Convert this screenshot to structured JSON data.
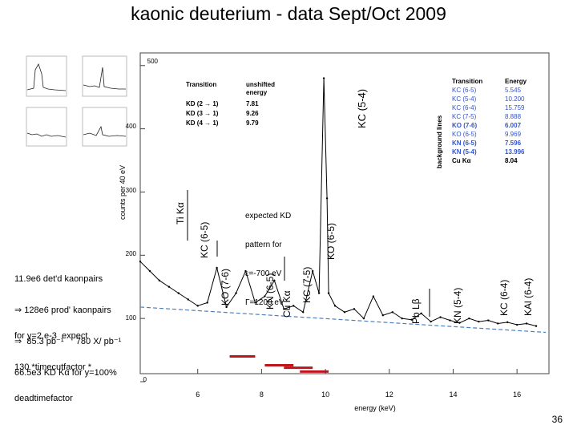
{
  "slide": {
    "title": "kaonic deuterium  - data Sept/Oct 2009",
    "page_number": "36",
    "info_lines": [
      "11.9e6 det'd kaonpairs",
      "⇒ 128e6 prod' kaonpairs",
      "⇒  85.3 pb⁻¹     780 X/ pb⁻¹",
      "66.5e3 KD Kα for y=100%"
    ],
    "yield_lines": [
      "for y=2.e-3  expect",
      "130 *timecutfactor *",
      "deadtimefactor"
    ],
    "expected_lines": [
      "expected KD",
      "pattern for",
      "ε=-700 eV",
      "Γ=1200 eV"
    ]
  },
  "chart_data": {
    "type": "line",
    "xlabel": "energy (keV)",
    "ylabel": "counts per 40 eV",
    "xlim": [
      4.2,
      17
    ],
    "ylim": [
      0,
      520
    ],
    "xticks": [
      "6",
      "8",
      "10",
      "12",
      "14",
      "16"
    ],
    "yticks": [
      "0",
      "100",
      "200",
      "300",
      "400",
      "500"
    ],
    "series": [
      {
        "x": [
          4.2,
          4.5,
          4.8,
          5.1,
          5.4,
          5.7,
          6.0,
          6.3,
          6.6,
          6.9,
          7.2,
          7.5,
          7.8,
          8.1,
          8.4,
          8.7,
          9.0,
          9.3,
          9.6,
          9.8,
          9.95,
          10.05,
          10.1,
          10.3,
          10.6,
          10.9,
          11.2,
          11.5,
          11.8,
          12.1,
          12.4,
          12.7,
          13.0,
          13.3,
          13.6,
          13.9,
          14.2,
          14.5,
          14.8,
          15.1,
          15.4,
          15.7,
          16.0,
          16.3,
          16.6
        ],
        "y": [
          190,
          175,
          160,
          150,
          140,
          130,
          120,
          125,
          180,
          118,
          140,
          175,
          125,
          135,
          160,
          115,
          120,
          110,
          175,
          140,
          480,
          290,
          140,
          120,
          110,
          115,
          100,
          135,
          105,
          110,
          100,
          98,
          108,
          95,
          102,
          97,
          93,
          100,
          95,
          97,
          92,
          94,
          90,
          92,
          88
        ]
      },
      {
        "name": "background",
        "x": [
          4.2,
          16.9
        ],
        "y": [
          118,
          78
        ]
      }
    ],
    "kd_pattern_bars": [
      {
        "x1": 7.0,
        "x2": 7.8,
        "y": 40
      },
      {
        "x1": 8.1,
        "x2": 9.0,
        "y": 26
      },
      {
        "x1": 8.7,
        "x2": 9.6,
        "y": 22
      },
      {
        "x1": 9.2,
        "x2": 10.1,
        "y": 16
      }
    ],
    "peak_labels": [
      "Ti Kα",
      "KC (6-5)",
      "KO (7-6)",
      "KN (6-5)",
      "Cu Kα",
      "KC (7-5)",
      "KO (6-5)",
      "KC (5-4)",
      "Pb Lβ",
      "KN (5-4)",
      "KC (6-4)",
      "KAl (6-4)"
    ],
    "kd_table": {
      "headers": [
        "Transition",
        "unshifted\nenergy"
      ],
      "rows": [
        [
          "KD (2 → 1)",
          "7.81"
        ],
        [
          "KD (3 → 1)",
          "9.26"
        ],
        [
          "KD (4 → 1)",
          "9.79"
        ]
      ]
    },
    "background_table": {
      "caption": "background lines",
      "headers": [
        "Transition",
        "Energy"
      ],
      "rows": [
        [
          "KC (6-5)",
          "5.545"
        ],
        [
          "KC (5-4)",
          "10.200"
        ],
        [
          "KC (6-4)",
          "15.759"
        ],
        [
          "KC (7-5)",
          "8.888"
        ],
        [
          "KO (7-6)",
          "6.007"
        ],
        [
          "KO (6-5)",
          "9.969"
        ],
        [
          "KN (6-5)",
          "7.596"
        ],
        [
          "KN (5-4)",
          "13.996"
        ],
        [
          "Cu Kα",
          "8.04"
        ]
      ]
    },
    "colors": {
      "data": "#000000",
      "background_fit": "#4a7fc1",
      "kd_pattern": "#c0141c",
      "table_blue": "#3355cc"
    }
  }
}
